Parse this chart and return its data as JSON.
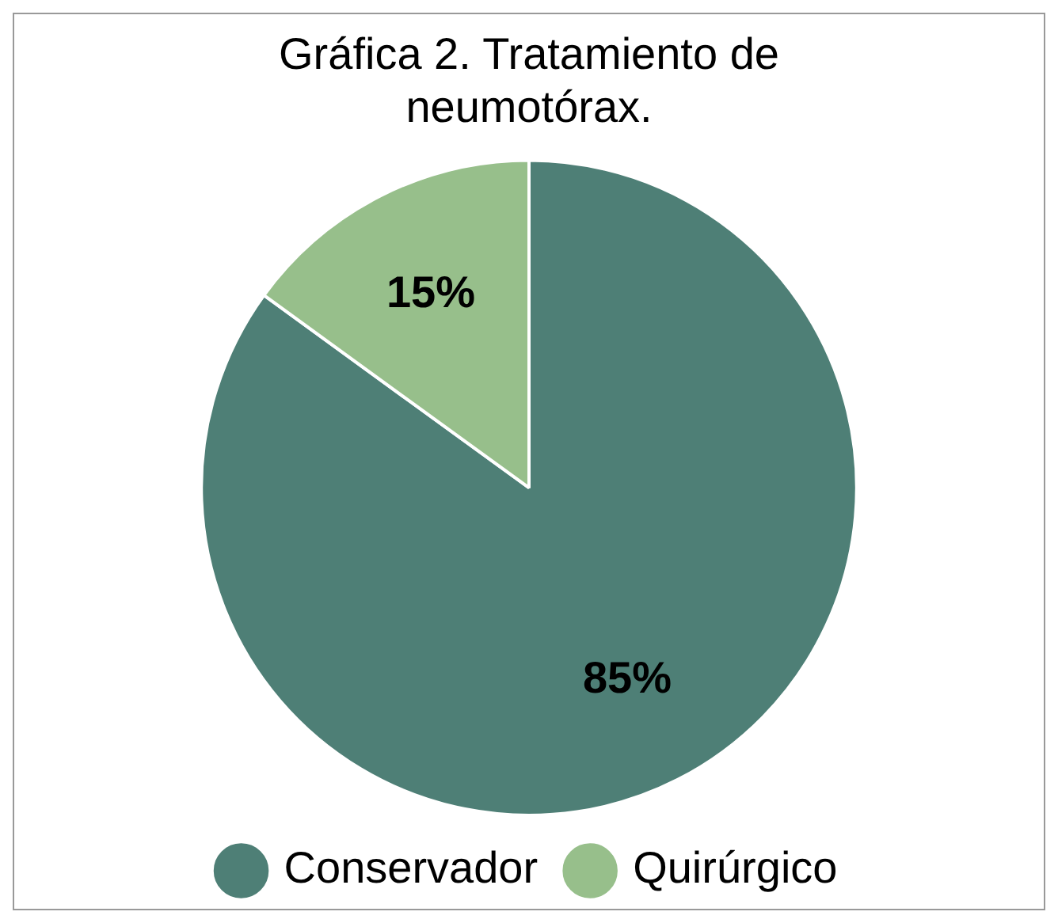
{
  "chart_data": {
    "type": "pie",
    "title": "Gráfica 2. Tratamiento de neumotórax.",
    "categories": [
      "Conservador",
      "Quirúrgico"
    ],
    "values": [
      85,
      15
    ],
    "colors": [
      "#4e7f76",
      "#97bf8b"
    ],
    "value_labels": [
      "85%",
      "15%"
    ],
    "legend": "bottom"
  }
}
